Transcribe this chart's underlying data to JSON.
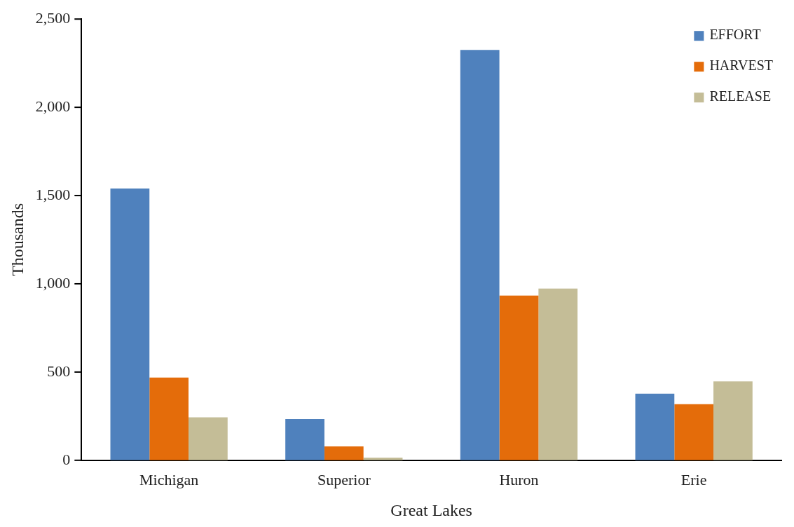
{
  "chart_data": {
    "type": "bar",
    "xlabel": "Great Lakes",
    "ylabel": "Thousands",
    "categories": [
      "Michigan",
      "Superior",
      "Huron",
      "Erie"
    ],
    "series": [
      {
        "name": "EFFORT",
        "color": "#4f81bd",
        "values": [
          1540,
          233,
          2325,
          377
        ]
      },
      {
        "name": "HARVEST",
        "color": "#e46c0a",
        "values": [
          469,
          79,
          933,
          318
        ]
      },
      {
        "name": "RELEASE",
        "color": "#c4bd97",
        "values": [
          243,
          15,
          973,
          447
        ]
      }
    ],
    "ylim": [
      0,
      2500
    ],
    "yticks": [
      {
        "value": 0,
        "label": "0"
      },
      {
        "value": 500,
        "label": "500"
      },
      {
        "value": 1000,
        "label": "1,000"
      },
      {
        "value": 1500,
        "label": "1,500"
      },
      {
        "value": 2000,
        "label": "2,000"
      },
      {
        "value": 2500,
        "label": "2,500"
      }
    ],
    "grid": false,
    "legend": "top right"
  }
}
